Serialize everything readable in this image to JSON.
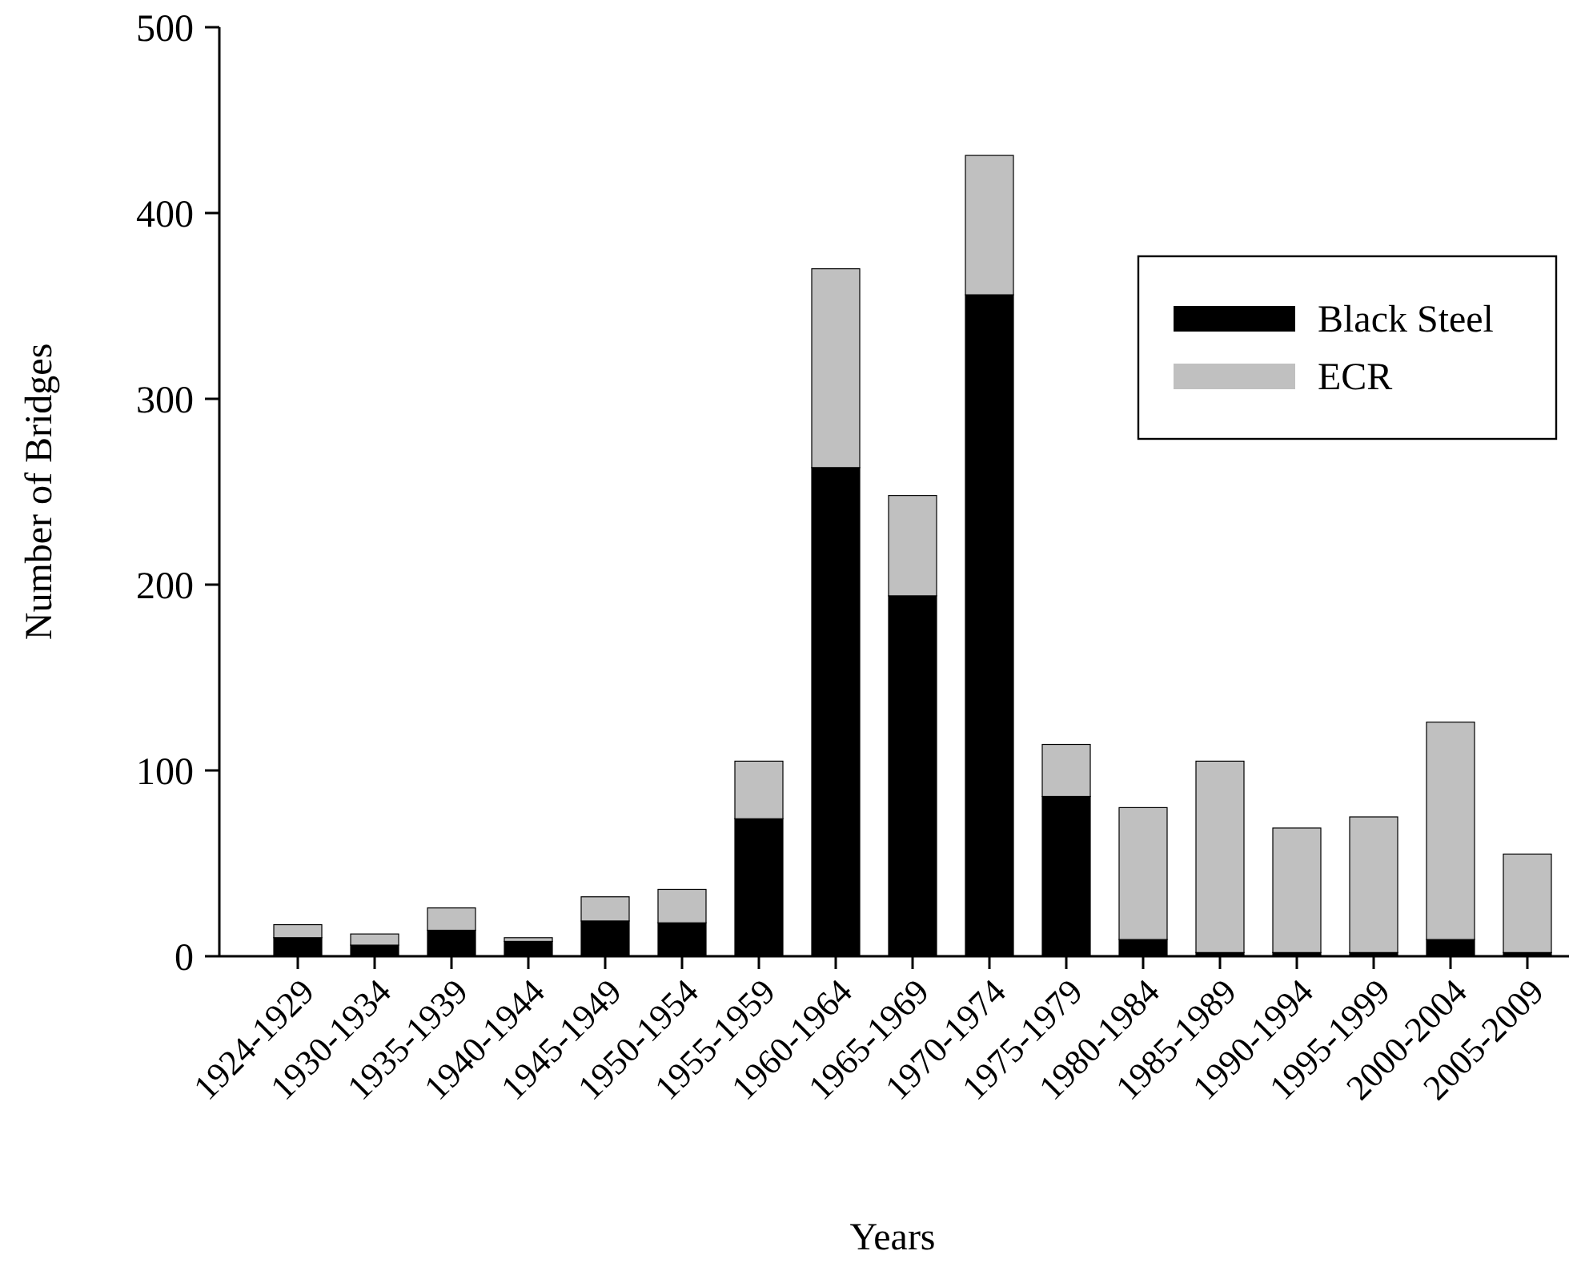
{
  "chart_data": {
    "type": "bar",
    "xlabel": "Years",
    "ylabel": "Number of Bridges",
    "stacked": true,
    "legend": "top right",
    "categories": [
      "1924-1929",
      "1930-1934",
      "1935-1939",
      "1940-1944",
      "1945-1949",
      "1950-1954",
      "1955-1959",
      "1960-1964",
      "1965-1969",
      "1970-1974",
      "1975-1979",
      "1980-1984",
      "1985-1989",
      "1990-1994",
      "1995-1999",
      "2000-2004",
      "2005-2009"
    ],
    "series": [
      {
        "name": "Black Steel",
        "color": "#000000",
        "values": [
          10,
          6,
          14,
          8,
          19,
          18,
          74,
          263,
          194,
          356,
          86,
          9,
          2,
          2,
          2,
          9,
          2
        ]
      },
      {
        "name": "ECR",
        "color": "#c0c0c0",
        "values": [
          7,
          6,
          12,
          2,
          13,
          18,
          31,
          107,
          54,
          75,
          28,
          71,
          103,
          67,
          73,
          117,
          53
        ]
      }
    ],
    "ylim": [
      0,
      500
    ],
    "yticks": [
      0,
      100,
      200,
      300,
      400,
      500
    ]
  }
}
